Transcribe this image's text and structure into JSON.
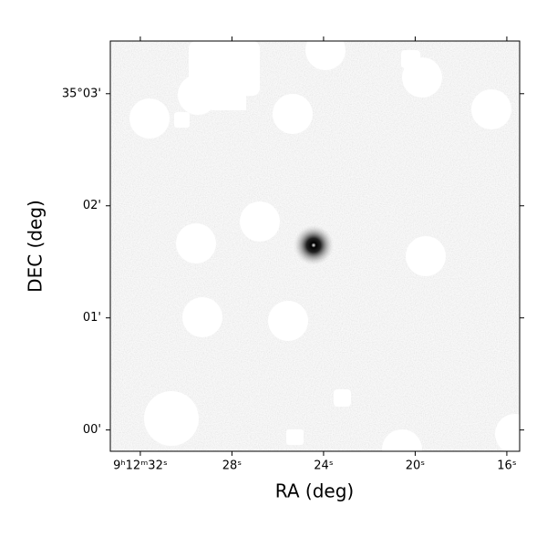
{
  "chart_data": {
    "type": "image",
    "xlabel": "RA (deg)",
    "ylabel": "DEC (deg)",
    "xlim": [
      33.31,
      15.44
    ],
    "xticks": [
      {
        "value": 32,
        "label": "9ʰ12ᵐ32ˢ"
      },
      {
        "value": 28,
        "label": "28ˢ"
      },
      {
        "value": 24,
        "label": "24ˢ"
      },
      {
        "value": 20,
        "label": "20ˢ"
      },
      {
        "value": 16,
        "label": "16ˢ"
      }
    ],
    "ylim": [
      -0.19,
      3.47
    ],
    "yticks": [
      {
        "value": 0,
        "label": "00'"
      },
      {
        "value": 1,
        "label": "01'"
      },
      {
        "value": 2,
        "label": "02'"
      },
      {
        "value": 3,
        "label": "35°03'"
      }
    ]
  }
}
